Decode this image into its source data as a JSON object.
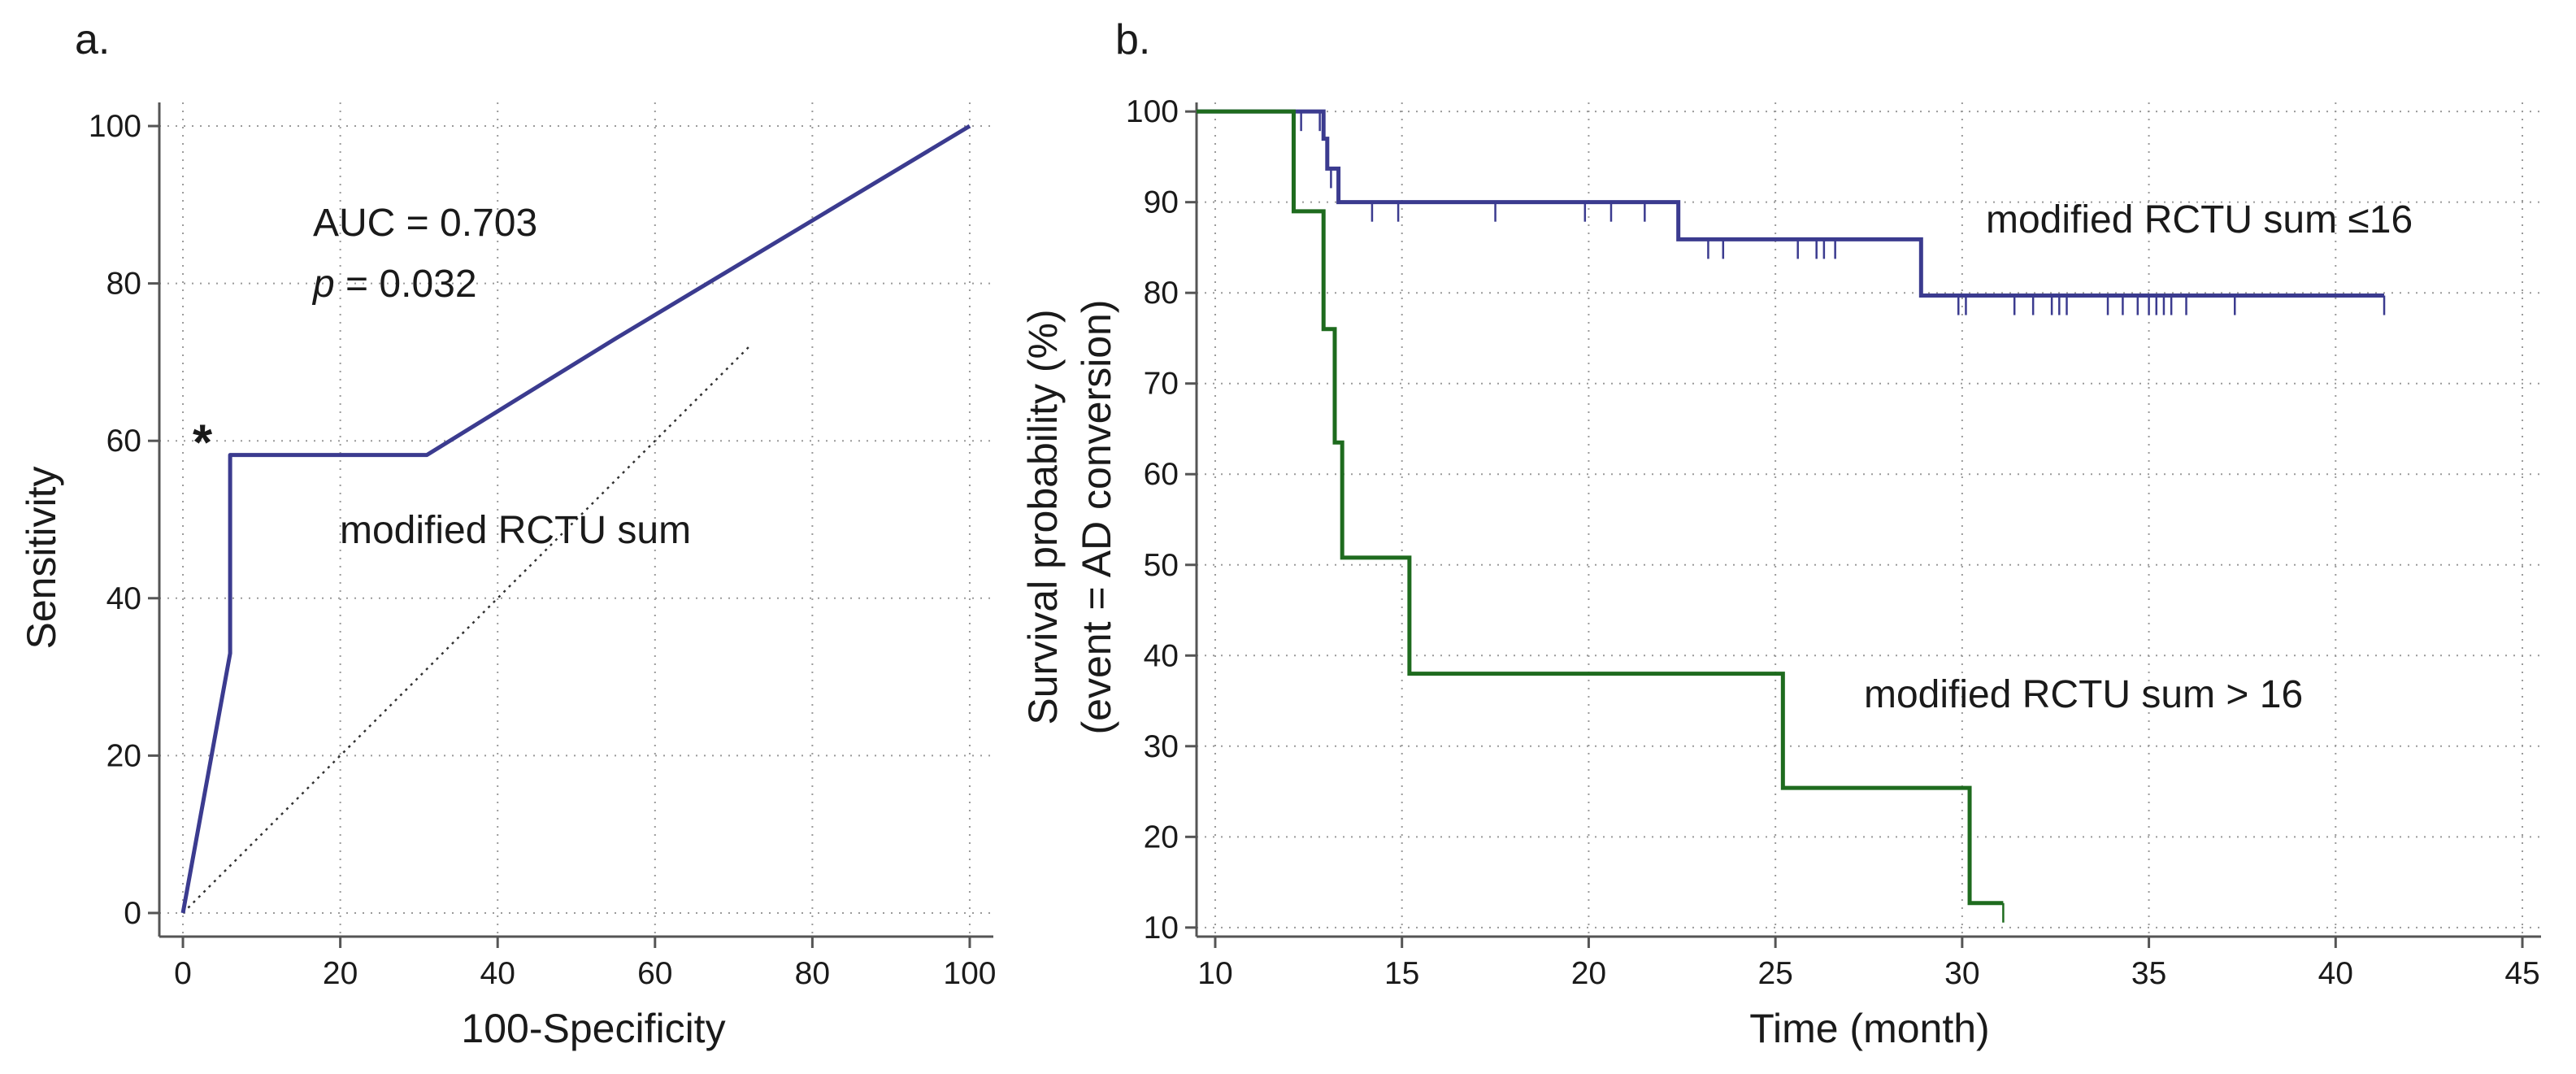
{
  "chart_data": [
    {
      "panel_label": "a.",
      "type": "line",
      "subtype": "roc",
      "title": "",
      "xlabel": "100-Specificity",
      "ylabel": "Sensitivity",
      "xlim": [
        -3,
        103
      ],
      "ylim": [
        -3,
        103
      ],
      "xticks": [
        0,
        20,
        40,
        60,
        80,
        100
      ],
      "yticks": [
        0,
        20,
        40,
        60,
        80,
        100
      ],
      "grid": true,
      "series": [
        {
          "name": "modified RCTU sum",
          "color": "#3b3b8f",
          "x": [
            0,
            6,
            6,
            31,
            55,
            100
          ],
          "y": [
            0,
            33,
            58.2,
            58.2,
            73,
            100
          ]
        }
      ],
      "reference_line": {
        "x": [
          0,
          72
        ],
        "y": [
          0,
          72
        ],
        "style": "dotted"
      },
      "cutoff_marker": {
        "label": "*",
        "x": 6,
        "y": 58.2
      },
      "annotations": {
        "auc": "AUC = 0.703",
        "p_symbol": "p",
        "p_value": " = 0.032",
        "curve_label": "modified RCTU sum"
      }
    },
    {
      "panel_label": "b.",
      "type": "line",
      "subtype": "kaplan-meier",
      "title": "",
      "xlabel": "Time (month)",
      "ylabel_line1": "Survival probability (%)",
      "ylabel_line2": "(event = AD conversion)",
      "xlim": [
        9.5,
        45.5
      ],
      "ylim": [
        9,
        101
      ],
      "xticks": [
        10,
        15,
        20,
        25,
        30,
        35,
        40,
        45
      ],
      "yticks": [
        10,
        20,
        30,
        40,
        50,
        60,
        70,
        80,
        90,
        100
      ],
      "grid": true,
      "series": [
        {
          "name": "modified RCTU sum ≤16",
          "color": "#3b3b8f",
          "step_x": [
            9.5,
            12.9,
            13.0,
            13.3,
            22.4,
            28.9,
            41.3
          ],
          "step_y": [
            100,
            97,
            93.7,
            90,
            85.9,
            79.7,
            79.7
          ],
          "censored_x": [
            12.3,
            12.8,
            13.1,
            14.2,
            14.9,
            17.5,
            19.9,
            20.6,
            21.5,
            23.2,
            23.6,
            25.6,
            26.1,
            26.3,
            26.6,
            29.9,
            30.1,
            31.4,
            31.9,
            32.4,
            32.6,
            32.8,
            33.9,
            34.3,
            34.7,
            35.0,
            35.2,
            35.4,
            35.6,
            36.0,
            37.3,
            41.3
          ]
        },
        {
          "name": "modified RCTU sum > 16",
          "color": "#1e6b1e",
          "step_x": [
            9.5,
            12.1,
            12.9,
            13.2,
            13.4,
            15.2,
            25.2,
            30.2,
            31.1
          ],
          "step_y": [
            100,
            89,
            76,
            63.5,
            50.8,
            38,
            25.4,
            12.7,
            12.7
          ],
          "censored_x": [
            31.1
          ]
        }
      ],
      "annotations": {
        "label_low": "modified RCTU sum ≤16",
        "label_high": "modified RCTU sum > 16"
      }
    }
  ]
}
